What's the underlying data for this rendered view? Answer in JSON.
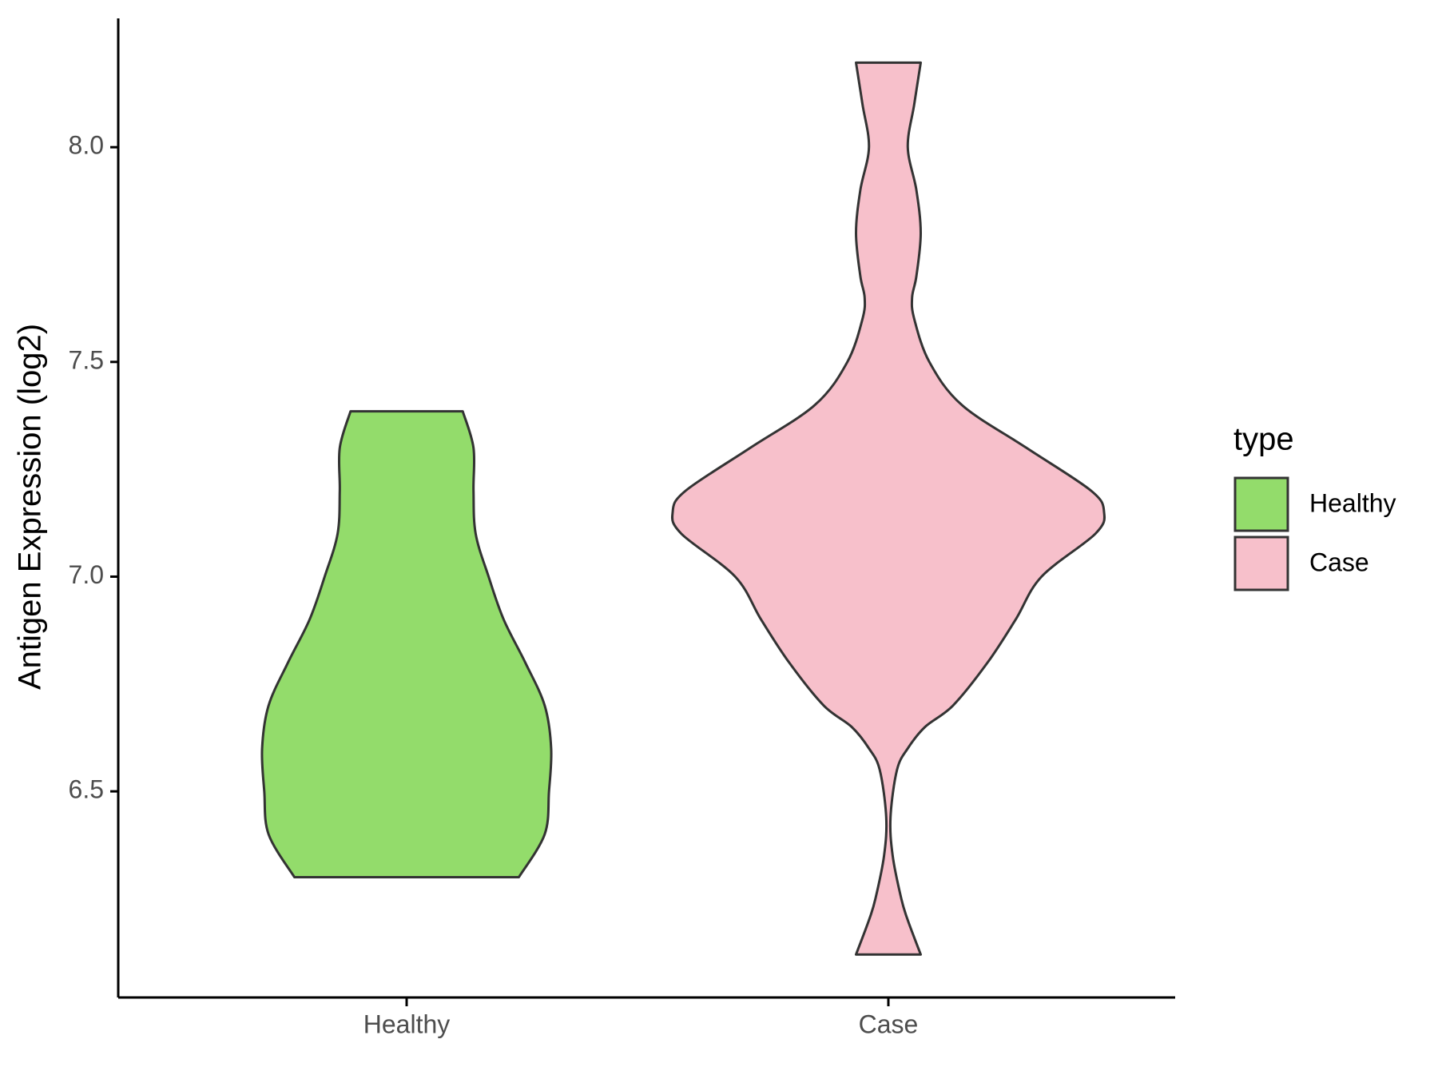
{
  "chart_data": {
    "type": "violin",
    "y_label": "Antigen Expression (log2)",
    "categories": [
      "Healthy",
      "Case"
    ],
    "ylim": [
      6.02,
      8.3
    ],
    "yticks": [
      6.5,
      {
        "value": 7.0,
        "label": "7.0"
      },
      7.5,
      {
        "value": 8.0,
        "label": "8.0"
      }
    ],
    "legend_title": "type",
    "legend_position": "right",
    "series": [
      {
        "name": "Healthy",
        "color": "#93dc6b",
        "y": [
          6.3,
          6.4,
          6.5,
          6.6,
          6.7,
          6.8,
          6.9,
          7.0,
          7.1,
          7.2,
          7.3,
          7.385
        ],
        "density": [
          0.52,
          0.64,
          0.66,
          0.67,
          0.64,
          0.55,
          0.45,
          0.38,
          0.32,
          0.31,
          0.31,
          0.26
        ]
      },
      {
        "name": "Case",
        "color": "#f7c0cb",
        "y": [
          6.12,
          6.2,
          6.25,
          6.35,
          6.44,
          6.55,
          6.6,
          6.65,
          6.7,
          6.8,
          6.9,
          7.0,
          7.1,
          7.15,
          7.2,
          7.3,
          7.4,
          7.5,
          7.6,
          7.65,
          7.7,
          7.8,
          7.9,
          8.0,
          8.1,
          8.197
        ],
        "density": [
          0.15,
          0.09,
          0.06,
          0.02,
          0.01,
          0.04,
          0.09,
          0.17,
          0.3,
          0.46,
          0.59,
          0.71,
          0.96,
          1.0,
          0.94,
          0.64,
          0.34,
          0.19,
          0.12,
          0.11,
          0.13,
          0.15,
          0.13,
          0.09,
          0.12,
          0.15
        ]
      }
    ]
  }
}
